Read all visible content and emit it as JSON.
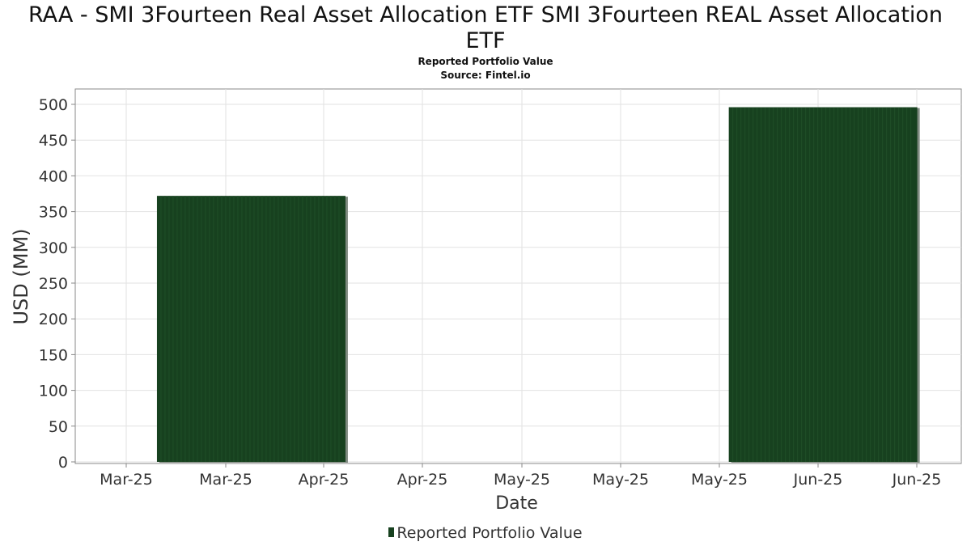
{
  "chart_data": {
    "type": "bar",
    "title": "RAA - SMI 3Fourteen Real Asset Allocation ETF SMI 3Fourteen REAL Asset Allocation ETF",
    "title_lines": [
      "RAA - SMI 3Fourteen Real Asset Allocation ETF SMI 3Fourteen REAL Asset Allocation",
      "ETF"
    ],
    "subtitle": "Reported Portfolio Value",
    "source": "Source: Fintel.io",
    "xlabel": "Date",
    "ylabel": "USD (MM)",
    "ylim": [
      0,
      520
    ],
    "yticks": [
      0,
      50,
      100,
      150,
      200,
      250,
      300,
      350,
      400,
      450,
      500
    ],
    "xtick_labels": [
      "Mar-25",
      "Mar-25",
      "Apr-25",
      "Apr-25",
      "May-25",
      "May-25",
      "May-25",
      "Jun-25",
      "Jun-25"
    ],
    "grid": true,
    "legend_position": "bottom",
    "series": [
      {
        "name": "Reported Portfolio Value",
        "color": "#17411f",
        "bars": [
          {
            "x_start": "2025-03-01",
            "x_end": "2025-03-31",
            "value": 372
          },
          {
            "x_start": "2025-05-31",
            "x_end": "2025-06-30",
            "value": 496
          }
        ]
      }
    ]
  }
}
